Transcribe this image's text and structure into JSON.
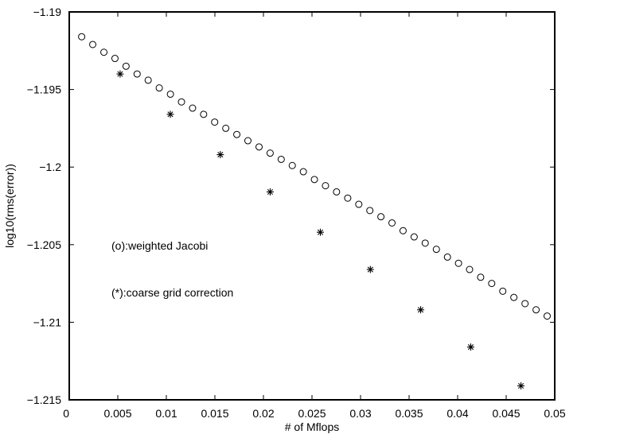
{
  "chart_data": {
    "type": "scatter",
    "title": "",
    "xlabel": "# of Mflops",
    "ylabel": "log10(rms(error))",
    "xlim": [
      0,
      0.05
    ],
    "ylim": [
      -1.215,
      -1.19
    ],
    "grid": false,
    "x_ticks": [
      0,
      0.005,
      0.01,
      0.015,
      0.02,
      0.025,
      0.03,
      0.035,
      0.04,
      0.045,
      0.05
    ],
    "x_tick_labels": [
      "0",
      "0.005",
      "0.01",
      "0.015",
      "0.02",
      "0.025",
      "0.03",
      "0.035",
      "0.04",
      "0.045",
      "0.05"
    ],
    "y_ticks": [
      -1.19,
      -1.195,
      -1.2,
      -1.205,
      -1.21,
      -1.215
    ],
    "y_tick_labels": [
      "−1.19",
      "−1.195",
      "−1.2",
      "−1.205",
      "−1.21",
      "−1.215"
    ],
    "annotations": [
      "(o):weighted Jacobi",
      "(*):coarse grid correction"
    ],
    "series": [
      {
        "marker": "o",
        "x": [
          0.00128,
          0.00242,
          0.00357,
          0.00471,
          0.00585,
          0.00699,
          0.00813,
          0.00927,
          0.01042,
          0.01156,
          0.0127,
          0.01384,
          0.01498,
          0.01612,
          0.01726,
          0.0184,
          0.01955,
          0.02069,
          0.02183,
          0.02297,
          0.02411,
          0.02525,
          0.02639,
          0.02753,
          0.02868,
          0.02982,
          0.03096,
          0.0321,
          0.03324,
          0.03438,
          0.03552,
          0.03666,
          0.03781,
          0.03895,
          0.04009,
          0.04123,
          0.04237,
          0.04351,
          0.04465,
          0.04579,
          0.04694,
          0.04808,
          0.04922
        ],
        "y": [
          -1.1916,
          -1.1921,
          -1.1926,
          -1.193,
          -1.1935,
          -1.194,
          -1.1944,
          -1.1949,
          -1.1953,
          -1.1958,
          -1.1962,
          -1.1966,
          -1.1971,
          -1.1975,
          -1.1979,
          -1.1983,
          -1.1987,
          -1.1991,
          -1.1995,
          -1.1999,
          -1.2003,
          -1.2008,
          -1.2012,
          -1.2016,
          -1.202,
          -1.2024,
          -1.2028,
          -1.2032,
          -1.2036,
          -1.2041,
          -1.2045,
          -1.2049,
          -1.2053,
          -1.2058,
          -1.2062,
          -1.2066,
          -1.2071,
          -1.2075,
          -1.208,
          -1.2084,
          -1.2088,
          -1.2092,
          -1.2096
        ]
      },
      {
        "marker": "*",
        "x": [
          0.00524,
          0.01041,
          0.01556,
          0.02069,
          0.02586,
          0.03101,
          0.03619,
          0.04135,
          0.04652
        ],
        "y": [
          -1.194,
          -1.1966,
          -1.1992,
          -1.2016,
          -1.2042,
          -1.2066,
          -1.2092,
          -1.2116,
          -1.2141
        ]
      }
    ]
  }
}
